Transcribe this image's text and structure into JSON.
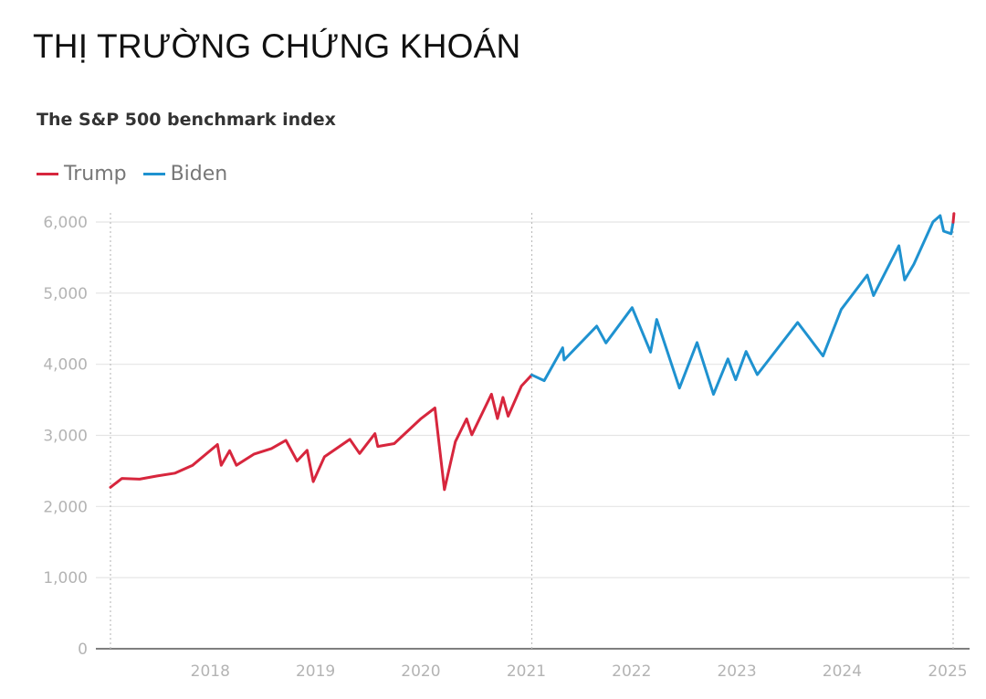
{
  "heading": "THỊ TRƯỜNG CHỨNG KHOÁN",
  "chart_data": {
    "type": "line",
    "title": "The S&P 500 benchmark index",
    "xlabel": "",
    "ylabel": "",
    "ylim": [
      0,
      6000
    ],
    "xlim": [
      "2017-01-20",
      "2025-01-20"
    ],
    "yticks": [
      {
        "value": 0,
        "label": "0"
      },
      {
        "value": 1000,
        "label": "1,000"
      },
      {
        "value": 2000,
        "label": "2,000"
      },
      {
        "value": 3000,
        "label": "3,000"
      },
      {
        "value": 4000,
        "label": "4,000"
      },
      {
        "value": 5000,
        "label": "5,000"
      },
      {
        "value": 6000,
        "label": "6,000"
      }
    ],
    "xticks": [
      {
        "value": "2018-01-01",
        "label": "2018"
      },
      {
        "value": "2019-01-01",
        "label": "2019"
      },
      {
        "value": "2020-01-01",
        "label": "2020"
      },
      {
        "value": "2021-01-01",
        "label": "2021"
      },
      {
        "value": "2022-01-01",
        "label": "2022"
      },
      {
        "value": "2023-01-01",
        "label": "2023"
      },
      {
        "value": "2024-01-01",
        "label": "2024"
      },
      {
        "value": "2025-01-01",
        "label": "2025"
      }
    ],
    "vertical_reference_lines": [
      "2017-01-20",
      "2021-01-20",
      "2025-01-20"
    ],
    "grid": true,
    "legend_position": "top-left",
    "series": [
      {
        "name": "Trump",
        "color": "#d7263d",
        "points": [
          [
            "2017-01-20",
            2270
          ],
          [
            "2017-03-01",
            2395
          ],
          [
            "2017-05-01",
            2385
          ],
          [
            "2017-07-01",
            2430
          ],
          [
            "2017-09-01",
            2470
          ],
          [
            "2017-11-01",
            2580
          ],
          [
            "2018-01-26",
            2872
          ],
          [
            "2018-02-08",
            2580
          ],
          [
            "2018-03-09",
            2785
          ],
          [
            "2018-04-02",
            2580
          ],
          [
            "2018-06-01",
            2735
          ],
          [
            "2018-08-01",
            2815
          ],
          [
            "2018-09-20",
            2930
          ],
          [
            "2018-10-29",
            2640
          ],
          [
            "2018-12-03",
            2790
          ],
          [
            "2018-12-24",
            2350
          ],
          [
            "2019-02-01",
            2700
          ],
          [
            "2019-04-30",
            2945
          ],
          [
            "2019-06-03",
            2745
          ],
          [
            "2019-07-26",
            3025
          ],
          [
            "2019-08-05",
            2845
          ],
          [
            "2019-10-01",
            2885
          ],
          [
            "2019-12-31",
            3230
          ],
          [
            "2020-02-19",
            3386
          ],
          [
            "2020-03-23",
            2237
          ],
          [
            "2020-04-30",
            2912
          ],
          [
            "2020-06-08",
            3232
          ],
          [
            "2020-06-26",
            3009
          ],
          [
            "2020-09-02",
            3580
          ],
          [
            "2020-09-23",
            3237
          ],
          [
            "2020-10-12",
            3534
          ],
          [
            "2020-10-30",
            3270
          ],
          [
            "2020-12-15",
            3694
          ],
          [
            "2021-01-20",
            3850
          ]
        ]
      },
      {
        "name": "Biden",
        "color": "#1f92d0",
        "points": [
          [
            "2021-01-20",
            3850
          ],
          [
            "2021-03-04",
            3770
          ],
          [
            "2021-05-07",
            4232
          ],
          [
            "2021-05-12",
            4060
          ],
          [
            "2021-09-02",
            4537
          ],
          [
            "2021-10-04",
            4300
          ],
          [
            "2022-01-03",
            4796
          ],
          [
            "2022-03-08",
            4170
          ],
          [
            "2022-03-29",
            4631
          ],
          [
            "2022-06-16",
            3666
          ],
          [
            "2022-08-16",
            4305
          ],
          [
            "2022-10-12",
            3577
          ],
          [
            "2022-12-01",
            4076
          ],
          [
            "2022-12-28",
            3783
          ],
          [
            "2023-02-02",
            4179
          ],
          [
            "2023-03-13",
            3855
          ],
          [
            "2023-07-31",
            4588
          ],
          [
            "2023-10-27",
            4117
          ],
          [
            "2023-12-29",
            4770
          ],
          [
            "2024-03-28",
            5254
          ],
          [
            "2024-04-19",
            4967
          ],
          [
            "2024-07-16",
            5667
          ],
          [
            "2024-08-05",
            5186
          ],
          [
            "2024-09-06",
            5408
          ],
          [
            "2024-11-11",
            6001
          ],
          [
            "2024-12-06",
            6090
          ],
          [
            "2024-12-18",
            5872
          ],
          [
            "2025-01-13",
            5836
          ],
          [
            "2025-01-20",
            5997
          ]
        ]
      },
      {
        "name": "",
        "color": "#d7263d",
        "points": [
          [
            "2025-01-20",
            5997
          ],
          [
            "2025-01-23",
            6119
          ]
        ]
      }
    ]
  },
  "legend": [
    {
      "name": "Trump",
      "color": "#d7263d"
    },
    {
      "name": "Biden",
      "color": "#1f92d0"
    }
  ]
}
